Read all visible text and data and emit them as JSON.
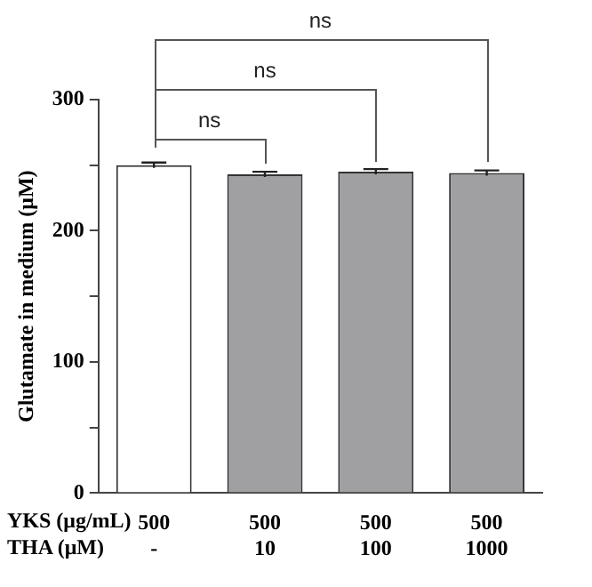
{
  "chart_data": {
    "type": "bar",
    "categories": [
      "500\n-",
      "500\n10",
      "500\n100",
      "500\n1000"
    ],
    "xlabel": "YKS (μg/mL)\nTHA (μM)",
    "ylabel": "Glutamate in medium (μM)",
    "values": [
      250,
      243,
      245,
      244
    ],
    "errors": [
      2,
      2,
      2,
      2
    ],
    "colors": [
      "#ffffff",
      "#a0a0a3",
      "#a0a0a3",
      "#a0a0a3"
    ],
    "ylim": [
      0,
      300
    ],
    "yticks": [
      0,
      {
        "value": 50,
        "label": null
      },
      100,
      {
        "value": 150,
        "label": null
      },
      200,
      {
        "value": 250,
        "label": null
      },
      300
    ],
    "annotations": [
      "ns",
      "ns",
      "ns"
    ],
    "grid": false,
    "legend": false
  }
}
